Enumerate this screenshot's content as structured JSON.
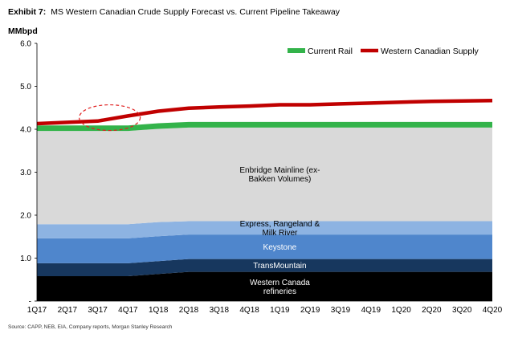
{
  "header": {
    "exhibit_number": "Exhibit 7:",
    "title": "MS Western Canadian Crude Supply Forecast vs. Current Pipeline Takeaway"
  },
  "source": "Source: CAPP, NEB, EIA, Company reports, Morgan Stanley Research",
  "chart_data": {
    "type": "area",
    "ylabel": "MMbpd",
    "ylim": [
      0,
      6
    ],
    "yticks": [
      "-",
      "1.0",
      "2.0",
      "3.0",
      "4.0",
      "5.0",
      "6.0"
    ],
    "categories": [
      "1Q17",
      "2Q17",
      "3Q17",
      "4Q17",
      "1Q18",
      "2Q18",
      "3Q18",
      "4Q18",
      "1Q19",
      "2Q19",
      "3Q19",
      "4Q19",
      "1Q20",
      "2Q20",
      "3Q20",
      "4Q20"
    ],
    "grid": false,
    "legend_position": "top-right",
    "stacked_series": [
      {
        "name": "Western Canada\nrefineries",
        "color": "#000000",
        "text_color": "#ffffff",
        "values": [
          0.58,
          0.58,
          0.58,
          0.58,
          0.63,
          0.68,
          0.68,
          0.68,
          0.68,
          0.68,
          0.68,
          0.68,
          0.68,
          0.68,
          0.68,
          0.68
        ]
      },
      {
        "name": "TransMountain",
        "color": "#17375e",
        "text_color": "#ffffff",
        "values": [
          0.3,
          0.3,
          0.3,
          0.3,
          0.3,
          0.3,
          0.3,
          0.3,
          0.3,
          0.3,
          0.3,
          0.3,
          0.3,
          0.3,
          0.3,
          0.3
        ]
      },
      {
        "name": "Keystone",
        "color": "#4f86cc",
        "text_color": "#ffffff",
        "values": [
          0.58,
          0.58,
          0.58,
          0.58,
          0.58,
          0.57,
          0.57,
          0.57,
          0.57,
          0.57,
          0.57,
          0.57,
          0.57,
          0.57,
          0.57,
          0.57
        ]
      },
      {
        "name": "Express, Rangeland &\nMilk River",
        "color": "#8db3e2",
        "text_color": "#000000",
        "values": [
          0.33,
          0.33,
          0.33,
          0.33,
          0.33,
          0.31,
          0.31,
          0.31,
          0.31,
          0.31,
          0.31,
          0.31,
          0.31,
          0.31,
          0.31,
          0.31
        ]
      },
      {
        "name": "Enbridge Mainline (ex-\nBakken Volumes)",
        "color": "#d9d9d9",
        "text_color": "#000000",
        "values": [
          2.17,
          2.17,
          2.17,
          2.17,
          2.17,
          2.18,
          2.18,
          2.18,
          2.18,
          2.18,
          2.18,
          2.18,
          2.18,
          2.18,
          2.18,
          2.18
        ]
      },
      {
        "name": "Current Rail",
        "color": "#33b34a",
        "text_color": "#000000",
        "values": [
          0.13,
          0.13,
          0.13,
          0.13,
          0.13,
          0.13,
          0.13,
          0.13,
          0.13,
          0.13,
          0.13,
          0.13,
          0.13,
          0.13,
          0.13,
          0.13
        ]
      }
    ],
    "line_series": [
      {
        "name": "Western Canadian Supply",
        "color": "#c00000",
        "values": [
          4.13,
          4.16,
          4.19,
          4.31,
          4.42,
          4.49,
          4.52,
          4.54,
          4.57,
          4.57,
          4.59,
          4.61,
          4.63,
          4.65,
          4.66,
          4.67
        ]
      }
    ],
    "legend": [
      {
        "label": "Current Rail",
        "color": "#33b34a"
      },
      {
        "label": "Western Canadian Supply",
        "color": "#c00000"
      }
    ],
    "highlight_ellipse": {
      "center_x_category": "3Q17",
      "center_y": 4.27,
      "color": "#e02020"
    }
  }
}
